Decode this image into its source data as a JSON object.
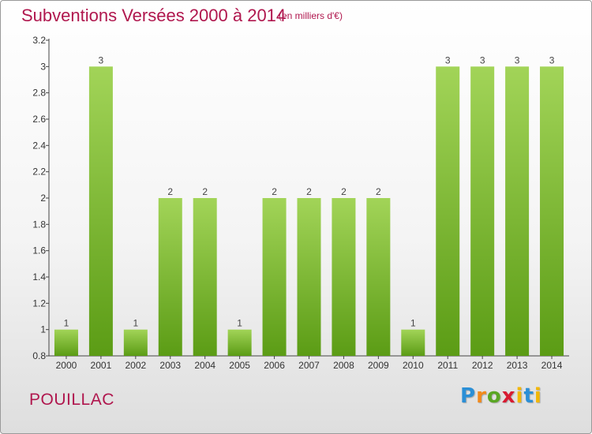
{
  "header": {
    "title": "Subventions Versées 2000 à 2014",
    "unit": "(en milliers d'€)"
  },
  "footer": {
    "commune": "POUILLAC",
    "logo_text": "Proxiti"
  },
  "colors": {
    "title": "#b0174e",
    "bar_top": "#a2d458",
    "bar_bottom": "#5b9c15"
  },
  "chart_data": {
    "type": "bar",
    "title": "Subventions Versées 2000 à 2014",
    "xlabel": "",
    "ylabel": "",
    "categories": [
      "2000",
      "2001",
      "2002",
      "2003",
      "2004",
      "2005",
      "2006",
      "2007",
      "2008",
      "2009",
      "2010",
      "2011",
      "2012",
      "2013",
      "2014"
    ],
    "values": [
      1,
      3,
      1,
      2,
      2,
      1,
      2,
      2,
      2,
      2,
      1,
      3,
      3,
      3,
      3
    ],
    "data_labels": [
      "1",
      "3",
      "1",
      "2",
      "2",
      "1",
      "2",
      "2",
      "2",
      "2",
      "1",
      "3",
      "3",
      "3",
      "3"
    ],
    "ylim": [
      0.8,
      3.2
    ],
    "yticks": [
      0.8,
      1,
      1.2,
      1.4,
      1.6,
      1.8,
      2,
      2.2,
      2.4,
      2.6,
      2.8,
      3,
      3.2
    ],
    "ytick_labels": [
      "0.8",
      "1",
      "1.2",
      "1.4",
      "1.6",
      "1.8",
      "2",
      "2.2",
      "2.4",
      "2.6",
      "2.8",
      "3",
      "3.2"
    ],
    "grid": false,
    "legend": "none"
  }
}
